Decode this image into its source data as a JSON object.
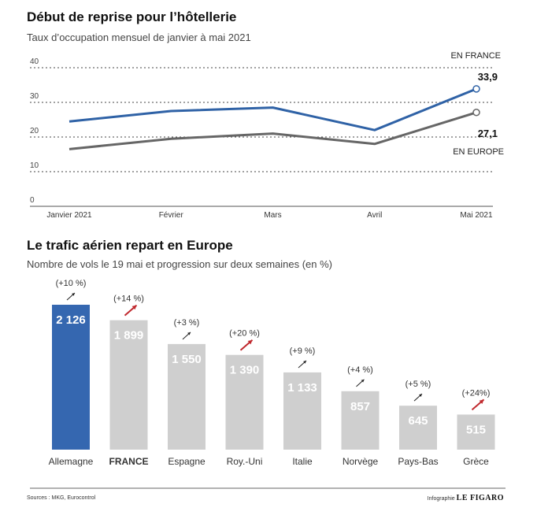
{
  "chart_data": [
    {
      "type": "line",
      "title": "Début de reprise pour l’hôtellerie",
      "subtitle": "Taux d’occupation mensuel de janvier à mai 2021",
      "categories": [
        "Janvier 2021",
        "Février",
        "Mars",
        "Avril",
        "Mai 2021"
      ],
      "series": [
        {
          "name": "EN FRANCE",
          "values": [
            24.5,
            27.5,
            28.5,
            22,
            33.9
          ],
          "color": "#2f62a6"
        },
        {
          "name": "EN EUROPE",
          "values": [
            16.5,
            19.5,
            21,
            18,
            27.1
          ],
          "color": "#666666"
        }
      ],
      "end_labels": [
        "33,9",
        "27,1"
      ],
      "yticks": [
        "0",
        "10",
        "20",
        "30",
        "40"
      ],
      "ylim": [
        0,
        40
      ],
      "grid": true
    },
    {
      "type": "bar",
      "title": "Le trafic aérien repart en Europe",
      "subtitle": "Nombre de vols le 19 mai et progression sur deux semaines (en %)",
      "categories": [
        "Allemagne",
        "FRANCE",
        "Espagne",
        "Roy.-Uni",
        "Italie",
        "Norvège",
        "Pays-Bas",
        "Grèce"
      ],
      "values": [
        2126,
        1899,
        1550,
        1390,
        1133,
        857,
        645,
        515
      ],
      "value_labels": [
        "2 126",
        "1 899",
        "1 550",
        "1 390",
        "1 133",
        "857",
        "645",
        "515"
      ],
      "progressions": [
        "(+10 %)",
        "(+14 %)",
        "(+3 %)",
        "(+20 %)",
        "(+9 %)",
        "(+4 %)",
        "(+5 %)",
        "(+24%)"
      ],
      "highlight_arrow": [
        false,
        true,
        false,
        true,
        false,
        false,
        false,
        true
      ],
      "bar_colors": {
        "highlight": "#3567b0",
        "default": "#cfcfcf",
        "arrow_red": "#c0282d",
        "arrow_black": "#222222"
      }
    }
  ],
  "footer": {
    "sources": "Sources : MKG, Eurocontrol",
    "credit": "Infographie",
    "logo": "LE FIGARO"
  }
}
